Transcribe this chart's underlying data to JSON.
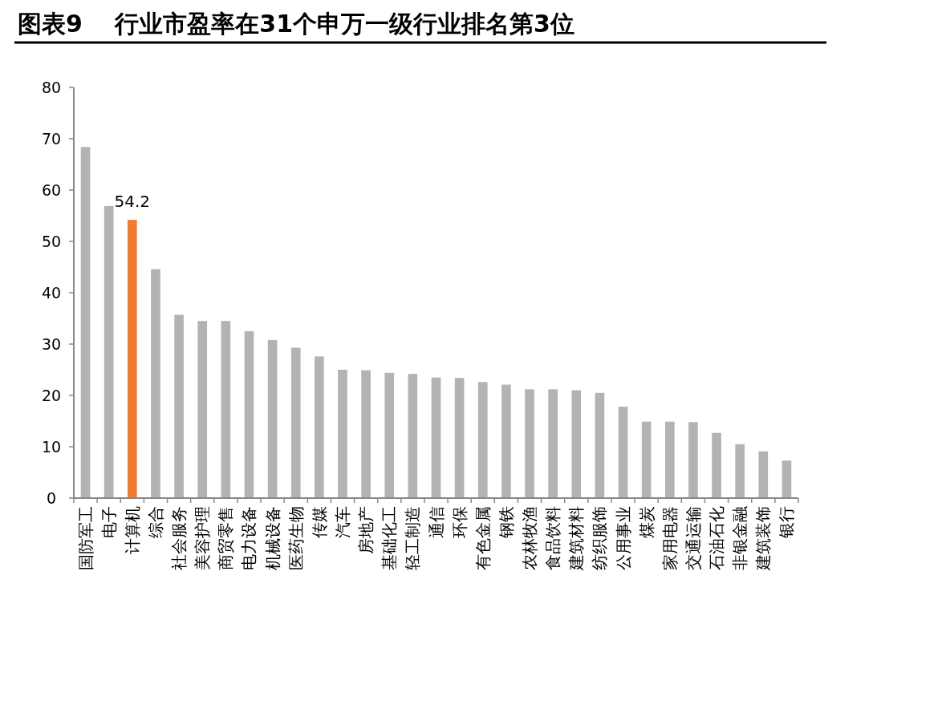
{
  "chart_data": {
    "type": "bar",
    "title": "图表9　 行业市盈率在31个申万一级行业排名第3位",
    "categories": [
      "国防军工",
      "电子",
      "计算机",
      "综合",
      "社会服务",
      "美容护理",
      "商贸零售",
      "电力设备",
      "机械设备",
      "医药生物",
      "传媒",
      "汽车",
      "房地产",
      "基础化工",
      "轻工制造",
      "通信",
      "环保",
      "有色金属",
      "钢铁",
      "农林牧渔",
      "食品饮料",
      "建筑材料",
      "纺织服饰",
      "公用事业",
      "煤炭",
      "家用电器",
      "交通运输",
      "石油石化",
      "非银金融",
      "建筑装饰",
      "银行"
    ],
    "values": [
      68.4,
      56.9,
      54.2,
      44.6,
      35.7,
      34.5,
      34.5,
      32.5,
      30.8,
      29.3,
      27.6,
      25.0,
      24.9,
      24.4,
      24.2,
      23.5,
      23.4,
      22.6,
      22.1,
      21.2,
      21.2,
      21.0,
      20.5,
      17.8,
      14.9,
      14.9,
      14.8,
      12.7,
      10.5,
      9.1,
      7.3
    ],
    "colors": [
      "#b3b3b3",
      "#b3b3b3",
      "#ed7d31",
      "#b3b3b3",
      "#b3b3b3",
      "#b3b3b3",
      "#b3b3b3",
      "#b3b3b3",
      "#b3b3b3",
      "#b3b3b3",
      "#b3b3b3",
      "#b3b3b3",
      "#b3b3b3",
      "#b3b3b3",
      "#b3b3b3",
      "#b3b3b3",
      "#b3b3b3",
      "#b3b3b3",
      "#b3b3b3",
      "#b3b3b3",
      "#b3b3b3",
      "#b3b3b3",
      "#b3b3b3",
      "#b3b3b3",
      "#b3b3b3",
      "#b3b3b3",
      "#b3b3b3",
      "#b3b3b3",
      "#b3b3b3",
      "#b3b3b3",
      "#b3b3b3"
    ],
    "value_labels": [
      null,
      null,
      "54.2",
      null,
      null,
      null,
      null,
      null,
      null,
      null,
      null,
      null,
      null,
      null,
      null,
      null,
      null,
      null,
      null,
      null,
      null,
      null,
      null,
      null,
      null,
      null,
      null,
      null,
      null,
      null,
      null
    ],
    "ylim": [
      0,
      80
    ],
    "yticks": [
      0,
      10,
      20,
      30,
      40,
      50,
      60,
      70,
      80
    ]
  }
}
